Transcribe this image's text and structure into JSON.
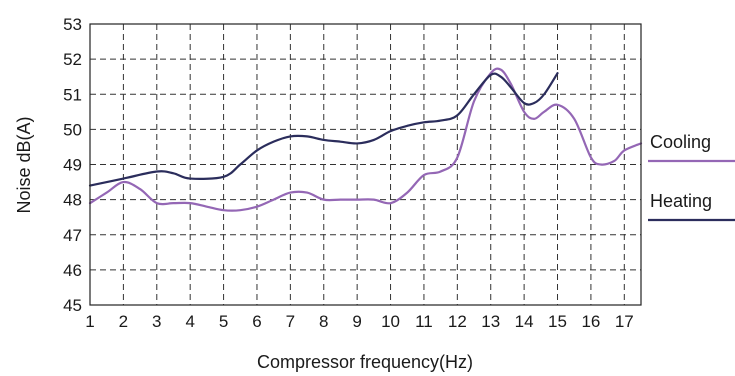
{
  "chart_data": {
    "type": "line",
    "xlabel": "Compressor frequency(Hz)",
    "ylabel": "Noise dB(A)",
    "xlim": [
      1,
      17.5
    ],
    "ylim": [
      45,
      53
    ],
    "x_ticks": [
      "1",
      "2",
      "3",
      "4",
      "5",
      "6",
      "7",
      "8",
      "9",
      "10",
      "11",
      "12",
      "13",
      "14",
      "15",
      "16",
      "17"
    ],
    "y_ticks": [
      "45",
      "46",
      "47",
      "48",
      "49",
      "50",
      "51",
      "52",
      "53"
    ],
    "grid": true,
    "legend_placement": "right",
    "series": [
      {
        "name": "Cooling",
        "color": "#9467b5",
        "points": [
          [
            1,
            47.9
          ],
          [
            1.5,
            48.2
          ],
          [
            2,
            48.5
          ],
          [
            2.5,
            48.3
          ],
          [
            3,
            47.9
          ],
          [
            3.5,
            47.9
          ],
          [
            4,
            47.9
          ],
          [
            4.5,
            47.8
          ],
          [
            5,
            47.7
          ],
          [
            5.5,
            47.7
          ],
          [
            6,
            47.8
          ],
          [
            6.5,
            48.0
          ],
          [
            7,
            48.2
          ],
          [
            7.5,
            48.2
          ],
          [
            8,
            48.0
          ],
          [
            8.5,
            48.0
          ],
          [
            9,
            48.0
          ],
          [
            9.5,
            48.0
          ],
          [
            10,
            47.9
          ],
          [
            10.5,
            48.2
          ],
          [
            11,
            48.7
          ],
          [
            11.5,
            48.8
          ],
          [
            12,
            49.2
          ],
          [
            12.5,
            50.8
          ],
          [
            13,
            51.6
          ],
          [
            13.3,
            51.7
          ],
          [
            13.6,
            51.3
          ],
          [
            14,
            50.5
          ],
          [
            14.3,
            50.3
          ],
          [
            14.6,
            50.5
          ],
          [
            15,
            50.7
          ],
          [
            15.5,
            50.3
          ],
          [
            16,
            49.2
          ],
          [
            16.3,
            49.0
          ],
          [
            16.7,
            49.1
          ],
          [
            17,
            49.4
          ],
          [
            17.5,
            49.6
          ]
        ]
      },
      {
        "name": "Heating",
        "color": "#2b2d5c",
        "points": [
          [
            1,
            48.4
          ],
          [
            2,
            48.6
          ],
          [
            3,
            48.8
          ],
          [
            3.5,
            48.75
          ],
          [
            4,
            48.6
          ],
          [
            5,
            48.65
          ],
          [
            5.5,
            49.0
          ],
          [
            6,
            49.4
          ],
          [
            6.5,
            49.65
          ],
          [
            7,
            49.8
          ],
          [
            7.5,
            49.8
          ],
          [
            8,
            49.7
          ],
          [
            8.5,
            49.65
          ],
          [
            9,
            49.6
          ],
          [
            9.5,
            49.7
          ],
          [
            10,
            49.95
          ],
          [
            10.5,
            50.1
          ],
          [
            11,
            50.2
          ],
          [
            11.5,
            50.25
          ],
          [
            12,
            50.4
          ],
          [
            12.5,
            51.0
          ],
          [
            13,
            51.55
          ],
          [
            13.3,
            51.5
          ],
          [
            13.6,
            51.2
          ],
          [
            14,
            50.75
          ],
          [
            14.3,
            50.75
          ],
          [
            14.6,
            51.0
          ],
          [
            15,
            51.6
          ]
        ]
      }
    ]
  }
}
